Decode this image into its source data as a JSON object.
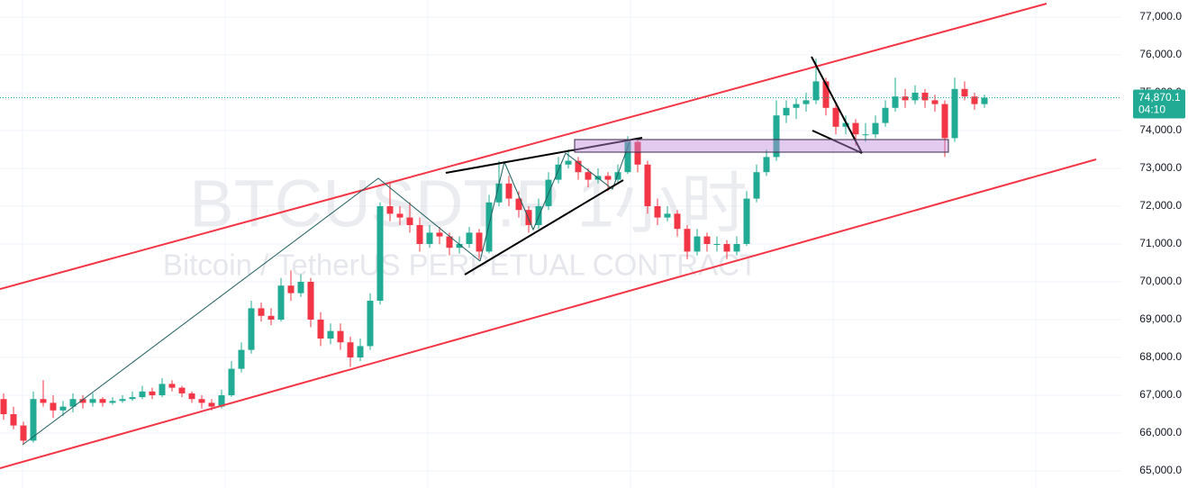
{
  "chart_data": {
    "type": "candlestick",
    "watermark_title": "BTCUSDT.P 1小时",
    "watermark_subtitle": "Bitcoin / TetherUS PERPETUAL CONTRACT",
    "up_color": "#22ab94",
    "down_color": "#f23645",
    "grid": true,
    "ylim": [
      64548,
      77452
    ],
    "yticks": [
      {
        "value": 65000,
        "label": "65,000.0"
      },
      {
        "value": 66000,
        "label": "66,000.0"
      },
      {
        "value": 67000,
        "label": "67,000.0"
      },
      {
        "value": 68000,
        "label": "68,000.0"
      },
      {
        "value": 69000,
        "label": "69,000.0"
      },
      {
        "value": 70000,
        "label": "70,000.0"
      },
      {
        "value": 71000,
        "label": "71,000.0"
      },
      {
        "value": 72000,
        "label": "72,000.0"
      },
      {
        "value": 73000,
        "label": "73,000.0"
      },
      {
        "value": 74000,
        "label": "74,000.0"
      },
      {
        "value": 75000,
        "label": "75,000.0"
      },
      {
        "value": 76000,
        "label": "76,000.0"
      },
      {
        "value": 77000,
        "label": "77,000.0"
      }
    ],
    "last_price_label": "74,870.1",
    "countdown": "04:10",
    "ohlc": [
      [
        66900,
        67050,
        66350,
        66500
      ],
      [
        66500,
        66700,
        66100,
        66200
      ],
      [
        66200,
        66300,
        65700,
        65800
      ],
      [
        65800,
        67100,
        65750,
        66900
      ],
      [
        66900,
        67400,
        66700,
        66800
      ],
      [
        66800,
        67000,
        66400,
        66600
      ],
      [
        66600,
        66850,
        66450,
        66700
      ],
      [
        66700,
        67050,
        66550,
        66900
      ],
      [
        66900,
        67000,
        66650,
        66800
      ],
      [
        66800,
        67050,
        66700,
        66900
      ],
      [
        66900,
        66950,
        66700,
        66800
      ],
      [
        66800,
        66950,
        66750,
        66850
      ],
      [
        66850,
        67000,
        66800,
        66900
      ],
      [
        66900,
        67100,
        66850,
        66950
      ],
      [
        66950,
        67250,
        66900,
        67100
      ],
      [
        67100,
        67200,
        66900,
        67000
      ],
      [
        67000,
        67450,
        66950,
        67300
      ],
      [
        67300,
        67400,
        67100,
        67200
      ],
      [
        67200,
        67250,
        66950,
        67050
      ],
      [
        67050,
        67100,
        66800,
        66900
      ],
      [
        66900,
        67000,
        66650,
        66800
      ],
      [
        66800,
        66900,
        66600,
        66700
      ],
      [
        66700,
        67150,
        66650,
        67000
      ],
      [
        67000,
        67900,
        66950,
        67700
      ],
      [
        67700,
        68400,
        67600,
        68200
      ],
      [
        68200,
        69500,
        68100,
        69300
      ],
      [
        69300,
        69450,
        68950,
        69100
      ],
      [
        69100,
        69300,
        68850,
        69000
      ],
      [
        69000,
        70100,
        68950,
        69900
      ],
      [
        69900,
        70300,
        69500,
        69700
      ],
      [
        69700,
        70200,
        69600,
        70000
      ],
      [
        70000,
        70100,
        68800,
        69000
      ],
      [
        69000,
        69200,
        68300,
        68500
      ],
      [
        68500,
        68900,
        68350,
        68700
      ],
      [
        68700,
        68900,
        68200,
        68400
      ],
      [
        68400,
        68550,
        67750,
        68000
      ],
      [
        68000,
        68500,
        67900,
        68300
      ],
      [
        68300,
        69700,
        68200,
        69500
      ],
      [
        69500,
        72100,
        69400,
        72000
      ],
      [
        72000,
        72600,
        71600,
        71800
      ],
      [
        71800,
        72000,
        71500,
        71700
      ],
      [
        71700,
        72100,
        71300,
        71500
      ],
      [
        71500,
        71700,
        70800,
        71000
      ],
      [
        71000,
        71500,
        70900,
        71300
      ],
      [
        71300,
        71450,
        71000,
        71200
      ],
      [
        71200,
        71300,
        70700,
        70900
      ],
      [
        70900,
        71200,
        70750,
        71000
      ],
      [
        71000,
        71450,
        70900,
        71300
      ],
      [
        71300,
        71400,
        70600,
        70800
      ],
      [
        70800,
        72300,
        70750,
        72100
      ],
      [
        72100,
        73200,
        72000,
        72600
      ],
      [
        72600,
        72800,
        72000,
        72200
      ],
      [
        72200,
        72400,
        71700,
        71900
      ],
      [
        71900,
        72000,
        71300,
        71500
      ],
      [
        71500,
        72200,
        71400,
        72000
      ],
      [
        72000,
        72900,
        71900,
        72700
      ],
      [
        72700,
        73300,
        72600,
        73100
      ],
      [
        73100,
        73500,
        73000,
        73200
      ],
      [
        73200,
        73300,
        72700,
        72900
      ],
      [
        72900,
        73000,
        72500,
        72700
      ],
      [
        72700,
        73000,
        72600,
        72800
      ],
      [
        72800,
        72900,
        72400,
        72700
      ],
      [
        72700,
        73100,
        72600,
        72900
      ],
      [
        72900,
        73850,
        72850,
        73700
      ],
      [
        73700,
        73800,
        72900,
        73100
      ],
      [
        73100,
        73200,
        71800,
        72000
      ],
      [
        72000,
        72200,
        71500,
        71700
      ],
      [
        71700,
        72000,
        71600,
        71800
      ],
      [
        71800,
        71900,
        71200,
        71400
      ],
      [
        71400,
        71500,
        70600,
        70800
      ],
      [
        70800,
        71400,
        70700,
        71200
      ],
      [
        71200,
        71300,
        70800,
        71000
      ],
      [
        71000,
        71200,
        70800,
        71000
      ],
      [
        71000,
        71100,
        70600,
        70800
      ],
      [
        70800,
        71200,
        70700,
        71000
      ],
      [
        71000,
        72400,
        70950,
        72200
      ],
      [
        72200,
        73100,
        72100,
        72900
      ],
      [
        72900,
        73500,
        72800,
        73300
      ],
      [
        73300,
        74800,
        73200,
        74400
      ],
      [
        74400,
        74800,
        74200,
        74600
      ],
      [
        74600,
        74850,
        74300,
        74700
      ],
      [
        74700,
        75000,
        74500,
        74800
      ],
      [
        74800,
        75900,
        74700,
        75300
      ],
      [
        75300,
        75400,
        74400,
        74600
      ],
      [
        74600,
        74700,
        73900,
        74100
      ],
      [
        74100,
        74400,
        73900,
        74200
      ],
      [
        74200,
        74300,
        73600,
        73900
      ],
      [
        73900,
        74200,
        73700,
        73900
      ],
      [
        73900,
        74400,
        73800,
        74200
      ],
      [
        74200,
        74800,
        74100,
        74600
      ],
      [
        74600,
        75400,
        74500,
        74900
      ],
      [
        74900,
        75100,
        74600,
        74800
      ],
      [
        74800,
        75200,
        74700,
        75000
      ],
      [
        75000,
        75100,
        74600,
        74800
      ],
      [
        74800,
        74950,
        74500,
        74700
      ],
      [
        74700,
        74800,
        73300,
        73800
      ],
      [
        73800,
        75400,
        73700,
        75100
      ],
      [
        75100,
        75300,
        74800,
        74900
      ],
      [
        74900,
        75000,
        74550,
        74700
      ],
      [
        74700,
        74950,
        74600,
        74870.1
      ]
    ]
  }
}
